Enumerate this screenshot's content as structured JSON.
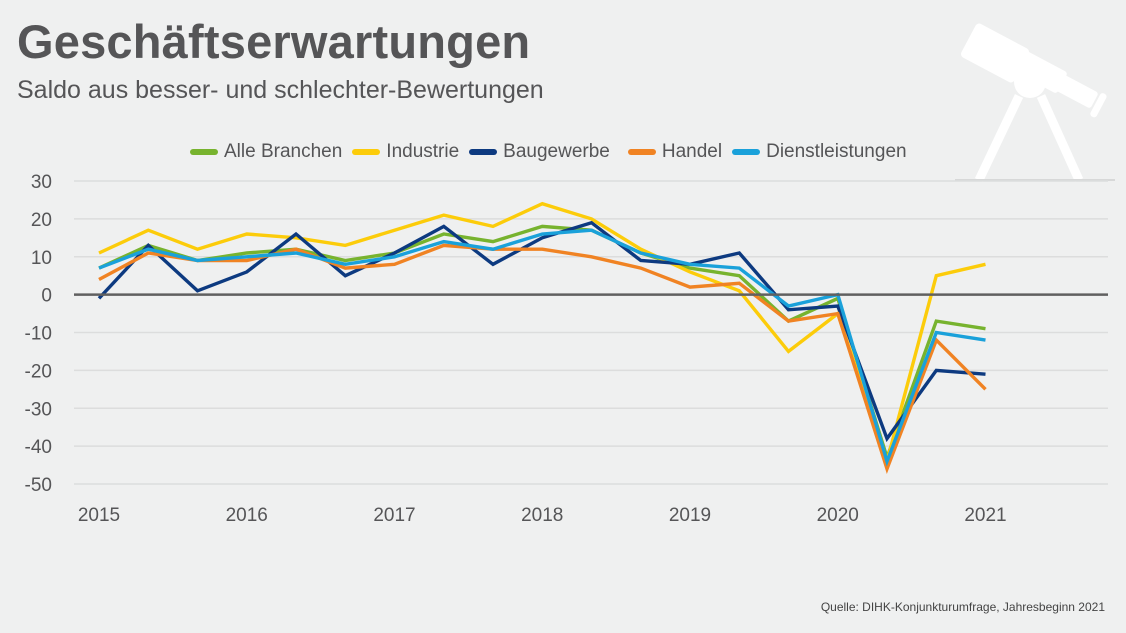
{
  "header": {
    "title": "Geschäftserwartungen",
    "subtitle": "Saldo aus besser- und schlechter-Bewertungen"
  },
  "decoration": {
    "icon": "telescope-icon"
  },
  "source": "Quelle: DIHK-Konjunkturumfrage, Jahresbeginn 2021",
  "chart_data": {
    "type": "line",
    "title": "Geschäftserwartungen",
    "subtitle": "Saldo aus besser- und schlechter-Bewertungen",
    "xlabel": "",
    "ylabel": "",
    "ylim": [
      -50,
      30
    ],
    "yticks": [
      30,
      20,
      10,
      0,
      -10,
      -20,
      -30,
      -40,
      -50
    ],
    "xtick_labels": [
      "2015",
      "2016",
      "2017",
      "2018",
      "2019",
      "2020",
      "2021"
    ],
    "points_per_year": 3,
    "n_points": 19,
    "grid": true,
    "zero_line": true,
    "legend_position": "top-center",
    "series": [
      {
        "name": "Alle Branchen",
        "color": "#77b32e",
        "values": [
          7,
          13,
          9,
          11,
          12,
          9,
          11,
          16,
          14,
          18,
          17,
          11,
          7,
          5,
          -7,
          -1,
          -43,
          -7,
          -9
        ]
      },
      {
        "name": "Industrie",
        "color": "#fccc0a",
        "values": [
          11,
          17,
          12,
          16,
          15,
          13,
          17,
          21,
          18,
          24,
          20,
          12,
          6,
          1,
          -15,
          -5,
          -44,
          5,
          8
        ]
      },
      {
        "name": "Baugewerbe",
        "color": "#0d3a80",
        "values": [
          -1,
          13,
          1,
          6,
          16,
          5,
          11,
          18,
          8,
          15,
          19,
          9,
          8,
          11,
          -4,
          -3,
          -38,
          -20,
          -21
        ]
      },
      {
        "name": "Handel",
        "color": "#f08323",
        "values": [
          4,
          11,
          9,
          9,
          12,
          7,
          8,
          13,
          12,
          12,
          10,
          7,
          2,
          3,
          -7,
          -5,
          -46,
          -12,
          -25
        ]
      },
      {
        "name": "Dienstleistungen",
        "color": "#1aa1da",
        "values": [
          7,
          12,
          9,
          10,
          11,
          8,
          10,
          14,
          12,
          16,
          17,
          11,
          8,
          7,
          -3,
          0,
          -44,
          -10,
          -12
        ]
      }
    ]
  }
}
